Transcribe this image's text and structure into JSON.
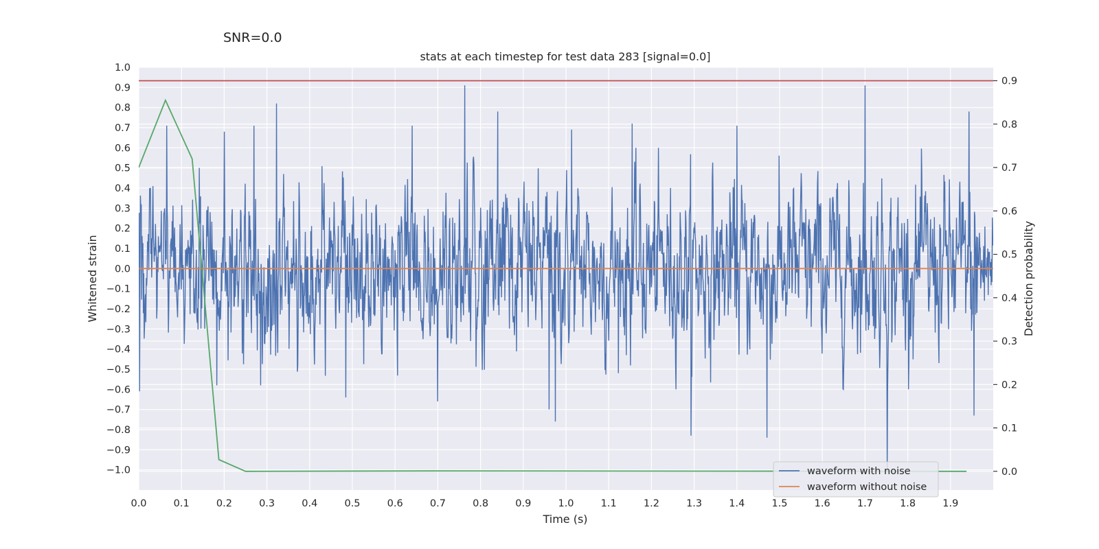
{
  "chart_data": {
    "type": "line",
    "suptitle": "SNR=0.0",
    "title": "stats at each timestep for test data 283 [signal=0.0]",
    "xlabel": "Time (s)",
    "ylabel": "Whitened strain",
    "y2label": "Detection probability",
    "xlim": [
      0.0,
      2.0
    ],
    "ylim": [
      -1.1,
      1.0
    ],
    "y2lim": [
      -0.043,
      0.931
    ],
    "x_ticks": [
      "0.0",
      "0.1",
      "0.2",
      "0.3",
      "0.4",
      "0.5",
      "0.6",
      "0.7",
      "0.8",
      "0.9",
      "1.0",
      "1.1",
      "1.2",
      "1.3",
      "1.4",
      "1.5",
      "1.6",
      "1.7",
      "1.8",
      "1.9"
    ],
    "y_ticks": [
      "1.0",
      "0.9",
      "0.8",
      "0.7",
      "0.6",
      "0.5",
      "0.4",
      "0.3",
      "0.2",
      "0.1",
      "0.0",
      "−0.1",
      "−0.2",
      "−0.3",
      "−0.4",
      "−0.5",
      "−0.6",
      "−0.7",
      "−0.8",
      "−0.9",
      "−1.0"
    ],
    "y2_ticks": [
      "0.9",
      "0.8",
      "0.7",
      "0.6",
      "0.5",
      "0.4",
      "0.3",
      "0.2",
      "0.1",
      "0.0"
    ],
    "grid": true,
    "legend_position": "lower-right",
    "colors": {
      "waveform_with_noise": "#4c72b0",
      "waveform_without_noise": "#dd8452",
      "detection_probability": "#55a868",
      "threshold": "#c44e52",
      "axes_background": "#eaeaf2",
      "grid": "#ffffff"
    },
    "series": [
      {
        "name": "waveform with noise",
        "axis": "left",
        "style": "noise",
        "x_range": [
          0.0,
          2.0
        ],
        "amplitude_sd": 0.2,
        "notable_peaks": [
          {
            "x": 0.002,
            "y": -0.61
          },
          {
            "x": 0.065,
            "y": 0.71
          },
          {
            "x": 0.142,
            "y": 0.5
          },
          {
            "x": 0.183,
            "y": -0.58
          },
          {
            "x": 0.2,
            "y": 0.68
          },
          {
            "x": 0.27,
            "y": 0.71
          },
          {
            "x": 0.285,
            "y": -0.58
          },
          {
            "x": 0.322,
            "y": 0.82
          },
          {
            "x": 0.485,
            "y": -0.64
          },
          {
            "x": 0.64,
            "y": 0.71
          },
          {
            "x": 0.7,
            "y": -0.66
          },
          {
            "x": 0.763,
            "y": 0.91
          },
          {
            "x": 0.84,
            "y": 0.78
          },
          {
            "x": 0.96,
            "y": -0.7
          },
          {
            "x": 0.975,
            "y": -0.76
          },
          {
            "x": 1.013,
            "y": 0.69
          },
          {
            "x": 1.155,
            "y": 0.72
          },
          {
            "x": 1.293,
            "y": -0.83
          },
          {
            "x": 1.4,
            "y": 0.71
          },
          {
            "x": 1.47,
            "y": -0.84
          },
          {
            "x": 1.7,
            "y": 0.91
          },
          {
            "x": 1.752,
            "y": -1.01
          },
          {
            "x": 1.943,
            "y": 0.78
          },
          {
            "x": 1.955,
            "y": -0.73
          }
        ]
      },
      {
        "name": "waveform without noise",
        "axis": "left",
        "x": [
          0.0,
          2.0
        ],
        "y": [
          0.0,
          0.0
        ]
      },
      {
        "axis": "right",
        "x": [
          0.0,
          0.0625,
          0.125,
          0.1875,
          0.25,
          0.6875,
          1.9375
        ],
        "y": [
          0.7,
          0.855,
          0.72,
          0.027,
          0.0,
          0.001,
          0.0
        ]
      },
      {
        "axis": "right",
        "x": [
          0.0,
          2.0
        ],
        "y": [
          0.9,
          0.9
        ]
      }
    ]
  }
}
